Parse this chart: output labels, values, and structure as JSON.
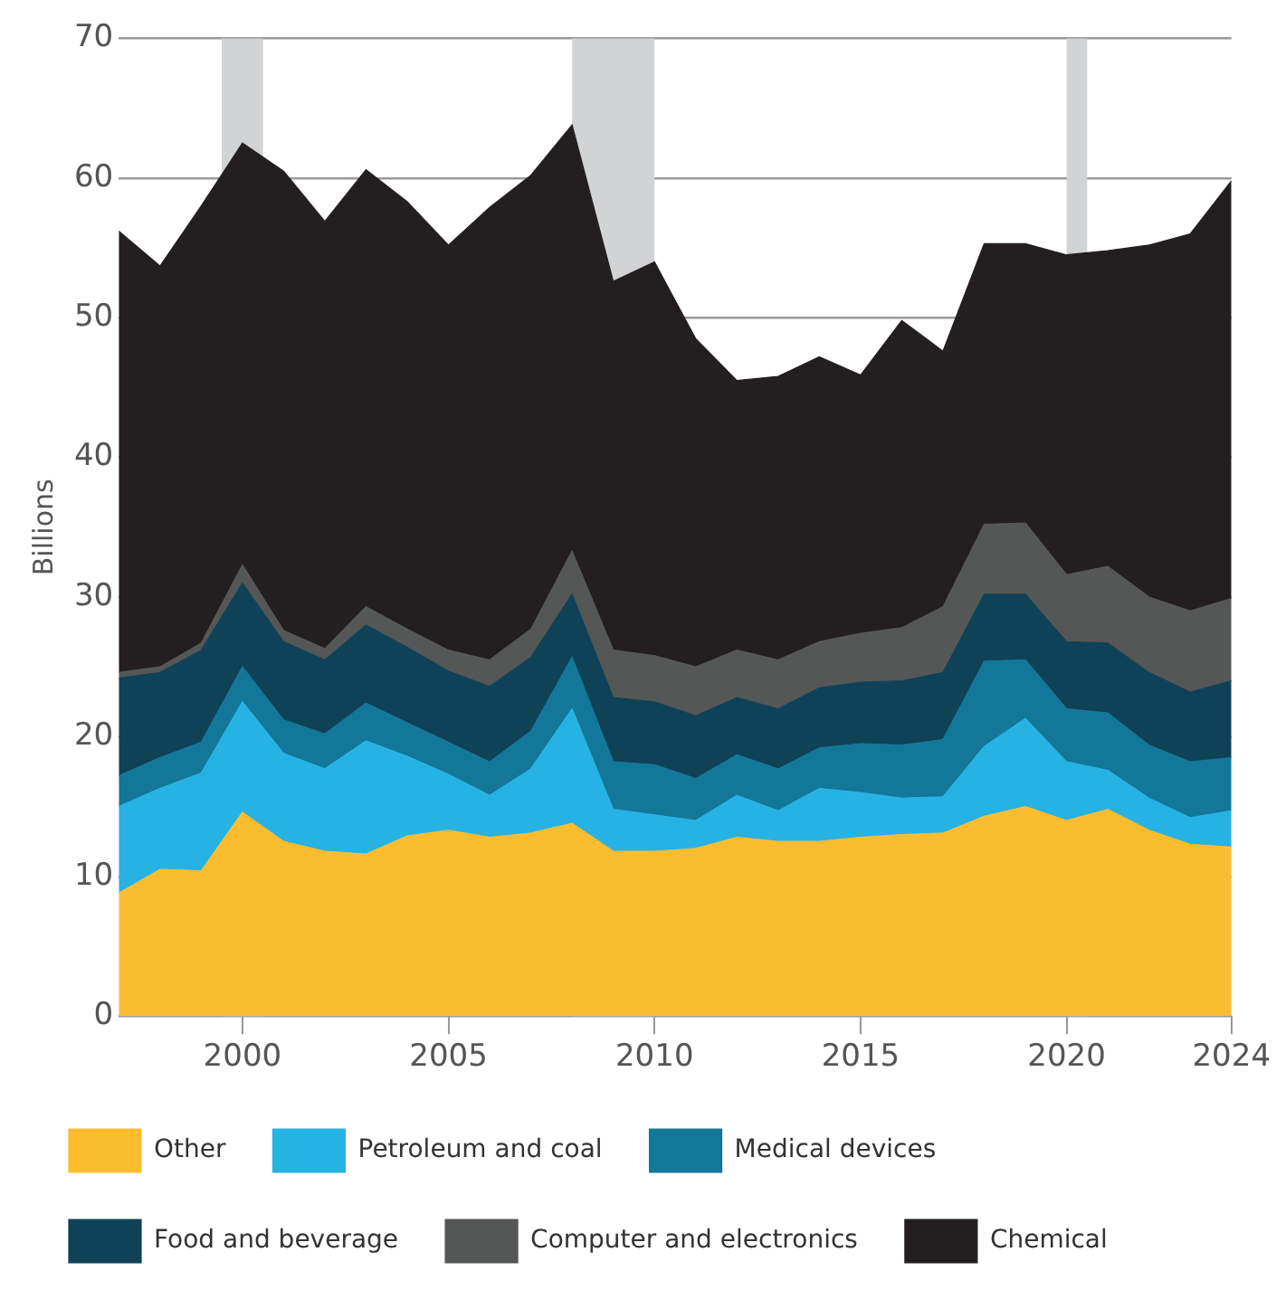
{
  "chart_data": {
    "type": "area",
    "ylabel": "Billions",
    "stacked": true,
    "x": [
      1997,
      1998,
      1999,
      2000,
      2001,
      2002,
      2003,
      2004,
      2005,
      2006,
      2007,
      2008,
      2009,
      2010,
      2011,
      2012,
      2013,
      2014,
      2015,
      2016,
      2017,
      2018,
      2019,
      2020,
      2021,
      2022,
      2023,
      2024
    ],
    "series": [
      {
        "name": "Other",
        "color": "#fbbd2f",
        "values": [
          8.8,
          10.5,
          10.4,
          14.6,
          12.5,
          11.8,
          11.6,
          12.9,
          13.3,
          12.8,
          13.1,
          13.8,
          11.8,
          11.8,
          12.0,
          12.8,
          12.5,
          12.5,
          12.8,
          13.0,
          13.1,
          14.3,
          15.0,
          14.0,
          14.8,
          13.3,
          12.3,
          12.1
        ]
      },
      {
        "name": "Petroleum and coal",
        "color": "#27b2e4",
        "values": [
          6.2,
          5.8,
          7.0,
          7.9,
          6.3,
          5.9,
          8.1,
          5.7,
          4.0,
          3.0,
          4.6,
          8.2,
          3.0,
          2.6,
          2.0,
          3.0,
          2.2,
          3.8,
          3.2,
          2.6,
          2.6,
          5.0,
          6.3,
          4.2,
          2.8,
          2.3,
          1.9,
          2.6
        ]
      },
      {
        "name": "Medical devices",
        "color": "#137799",
        "values": [
          2.2,
          2.2,
          2.2,
          2.5,
          2.4,
          2.5,
          2.7,
          2.4,
          2.3,
          2.4,
          2.7,
          3.7,
          3.4,
          3.6,
          3.0,
          2.9,
          3.0,
          2.9,
          3.5,
          3.8,
          4.1,
          6.1,
          4.2,
          3.8,
          4.1,
          3.8,
          4.0,
          3.8
        ]
      },
      {
        "name": "Food and beverage",
        "color": "#0f4257",
        "values": [
          7.0,
          6.1,
          6.6,
          6.0,
          5.6,
          5.3,
          5.6,
          5.4,
          5.1,
          5.4,
          5.3,
          4.5,
          4.6,
          4.5,
          4.5,
          4.1,
          4.3,
          4.3,
          4.4,
          4.6,
          4.8,
          4.8,
          4.7,
          4.8,
          5.0,
          5.2,
          5.0,
          5.5
        ]
      },
      {
        "name": "Computer and electronics",
        "color": "#555756",
        "values": [
          0.4,
          0.4,
          0.5,
          1.3,
          0.8,
          0.8,
          1.3,
          1.3,
          1.5,
          1.9,
          2.0,
          3.1,
          3.4,
          3.3,
          3.5,
          3.4,
          3.5,
          3.3,
          3.5,
          3.8,
          4.7,
          5.0,
          5.1,
          4.8,
          5.5,
          5.4,
          5.8,
          5.9
        ]
      },
      {
        "name": "Chemical",
        "color": "#231f20",
        "values": [
          31.6,
          28.7,
          31.3,
          30.2,
          32.9,
          30.6,
          31.3,
          30.6,
          29.0,
          32.4,
          32.5,
          30.5,
          26.4,
          28.2,
          23.5,
          19.3,
          20.3,
          20.4,
          18.5,
          22.0,
          18.3,
          20.1,
          20.0,
          22.9,
          22.6,
          25.2,
          27.0,
          29.9
        ]
      }
    ],
    "xlim": [
      1997,
      2024
    ],
    "xticks": [
      2000,
      2005,
      2010,
      2015,
      2020,
      2024
    ],
    "ylim": [
      0,
      70
    ],
    "yticks": [
      0,
      10,
      20,
      30,
      40,
      50,
      60,
      70
    ],
    "bands": [
      {
        "axis": "x",
        "from": 1999.5,
        "to": 2000.5,
        "color": "#d1d3d4"
      },
      {
        "axis": "x",
        "from": 2008,
        "to": 2010,
        "color": "#d1d3d4"
      },
      {
        "axis": "x",
        "from": 2020,
        "to": 2020.5,
        "color": "#d1d3d4"
      }
    ],
    "grid": "y",
    "legend": "bottom"
  }
}
